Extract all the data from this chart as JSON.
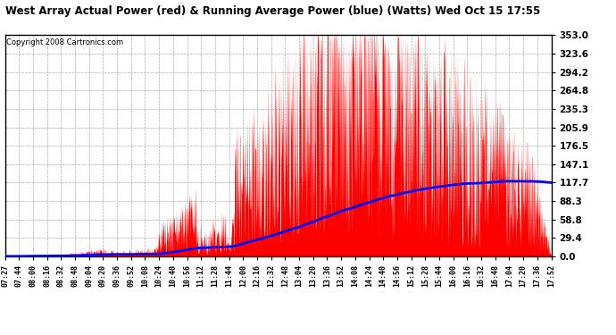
{
  "title": "West Array Actual Power (red) & Running Average Power (blue) (Watts) Wed Oct 15 17:55",
  "copyright": "Copyright 2008 Cartronics.com",
  "yticks": [
    0.0,
    29.4,
    58.8,
    88.3,
    117.7,
    147.1,
    176.5,
    205.9,
    235.3,
    264.8,
    294.2,
    323.6,
    353.0
  ],
  "ymax": 353.0,
  "ymin": 0.0,
  "bg_color": "#ffffff",
  "plot_bg": "#ffffff",
  "grid_color": "#999999",
  "actual_color": "red",
  "avg_color": "blue",
  "xtick_labels": [
    "07:27",
    "07:44",
    "08:00",
    "08:16",
    "08:32",
    "08:48",
    "09:04",
    "09:20",
    "09:36",
    "09:52",
    "10:08",
    "10:24",
    "10:40",
    "10:56",
    "11:12",
    "11:28",
    "11:44",
    "12:00",
    "12:16",
    "12:32",
    "12:48",
    "13:04",
    "13:20",
    "13:36",
    "13:52",
    "14:08",
    "14:24",
    "14:40",
    "14:56",
    "15:12",
    "15:28",
    "15:44",
    "16:00",
    "16:16",
    "16:32",
    "16:48",
    "17:04",
    "17:20",
    "17:36",
    "17:52"
  ],
  "n_points": 2000,
  "seed": 17
}
